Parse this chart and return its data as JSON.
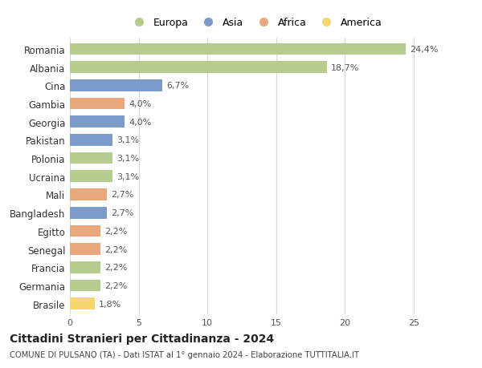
{
  "countries": [
    "Romania",
    "Albania",
    "Cina",
    "Gambia",
    "Georgia",
    "Pakistan",
    "Polonia",
    "Ucraina",
    "Mali",
    "Bangladesh",
    "Egitto",
    "Senegal",
    "Francia",
    "Germania",
    "Brasile"
  ],
  "values": [
    24.4,
    18.7,
    6.7,
    4.0,
    4.0,
    3.1,
    3.1,
    3.1,
    2.7,
    2.7,
    2.2,
    2.2,
    2.2,
    2.2,
    1.8
  ],
  "labels": [
    "24,4%",
    "18,7%",
    "6,7%",
    "4,0%",
    "4,0%",
    "3,1%",
    "3,1%",
    "3,1%",
    "2,7%",
    "2,7%",
    "2,2%",
    "2,2%",
    "2,2%",
    "2,2%",
    "1,8%"
  ],
  "continents": [
    "Europa",
    "Europa",
    "Asia",
    "Africa",
    "Asia",
    "Asia",
    "Europa",
    "Europa",
    "Africa",
    "Asia",
    "Africa",
    "Africa",
    "Europa",
    "Europa",
    "America"
  ],
  "continent_colors": {
    "Europa": "#b5cc8e",
    "Asia": "#7b9bc8",
    "Africa": "#e8a87c",
    "America": "#f5d76e"
  },
  "legend_order": [
    "Europa",
    "Asia",
    "Africa",
    "America"
  ],
  "title": "Cittadini Stranieri per Cittadinanza - 2024",
  "subtitle": "COMUNE DI PULSANO (TA) - Dati ISTAT al 1° gennaio 2024 - Elaborazione TUTTITALIA.IT",
  "xlim": [
    0,
    27
  ],
  "xticks": [
    0,
    5,
    10,
    15,
    20,
    25
  ],
  "background_color": "#ffffff",
  "grid_color": "#d8d8d8"
}
